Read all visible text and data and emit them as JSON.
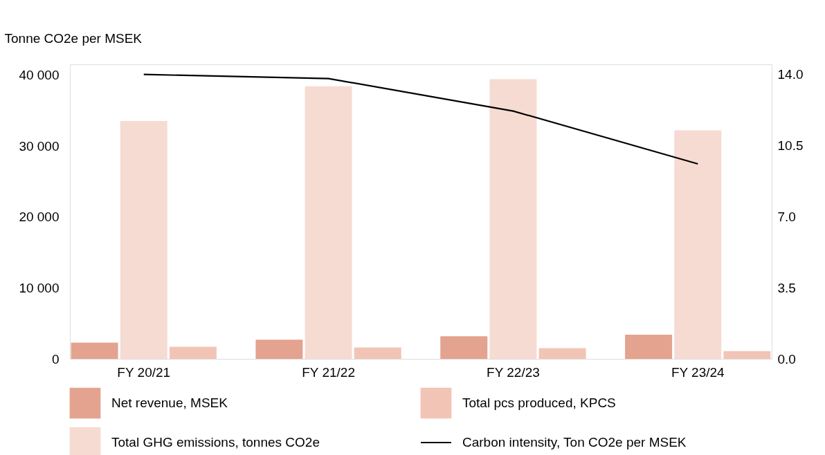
{
  "chart_data": {
    "type": "bar",
    "ylabel": "Tonne CO2e per MSEK",
    "categories": [
      "FY 20/21",
      "FY 21/22",
      "FY 22/23",
      "FY 23/24"
    ],
    "series": [
      {
        "name": "Net revenue, MSEK",
        "color": "#e4a38f",
        "values": [
          2300,
          2700,
          3200,
          3400
        ]
      },
      {
        "name": "Total GHG emissions, tonnes CO2e",
        "color": "#f6dbd2",
        "values": [
          33500,
          38400,
          39400,
          32200
        ]
      },
      {
        "name": "Total pcs produced, KPCS",
        "color": "#f2c4b6",
        "values": [
          1700,
          1600,
          1500,
          1100
        ]
      },
      {
        "name": "Carbon intensity, Ton CO2e per MSEK",
        "type": "line",
        "axis": "y2",
        "color": "#000000",
        "values": [
          14.0,
          13.8,
          12.2,
          9.6
        ]
      }
    ],
    "ylim": [
      0,
      41500
    ],
    "yticks": [
      {
        "value": 0,
        "label": "0"
      },
      {
        "value": 10000,
        "label": "10 000"
      },
      {
        "value": 20000,
        "label": "20 000"
      },
      {
        "value": 30000,
        "label": "30 000"
      },
      {
        "value": 40000,
        "label": "40 000"
      }
    ],
    "y2lim": [
      0,
      14.5
    ],
    "y2ticks": [
      {
        "value": 0,
        "label": "0.0"
      },
      {
        "value": 3.5,
        "label": "3.5"
      },
      {
        "value": 7,
        "label": "7.0"
      },
      {
        "value": 10.5,
        "label": "10.5"
      },
      {
        "value": 14,
        "label": "14.0"
      }
    ],
    "legend": "bottom",
    "grid": false
  }
}
